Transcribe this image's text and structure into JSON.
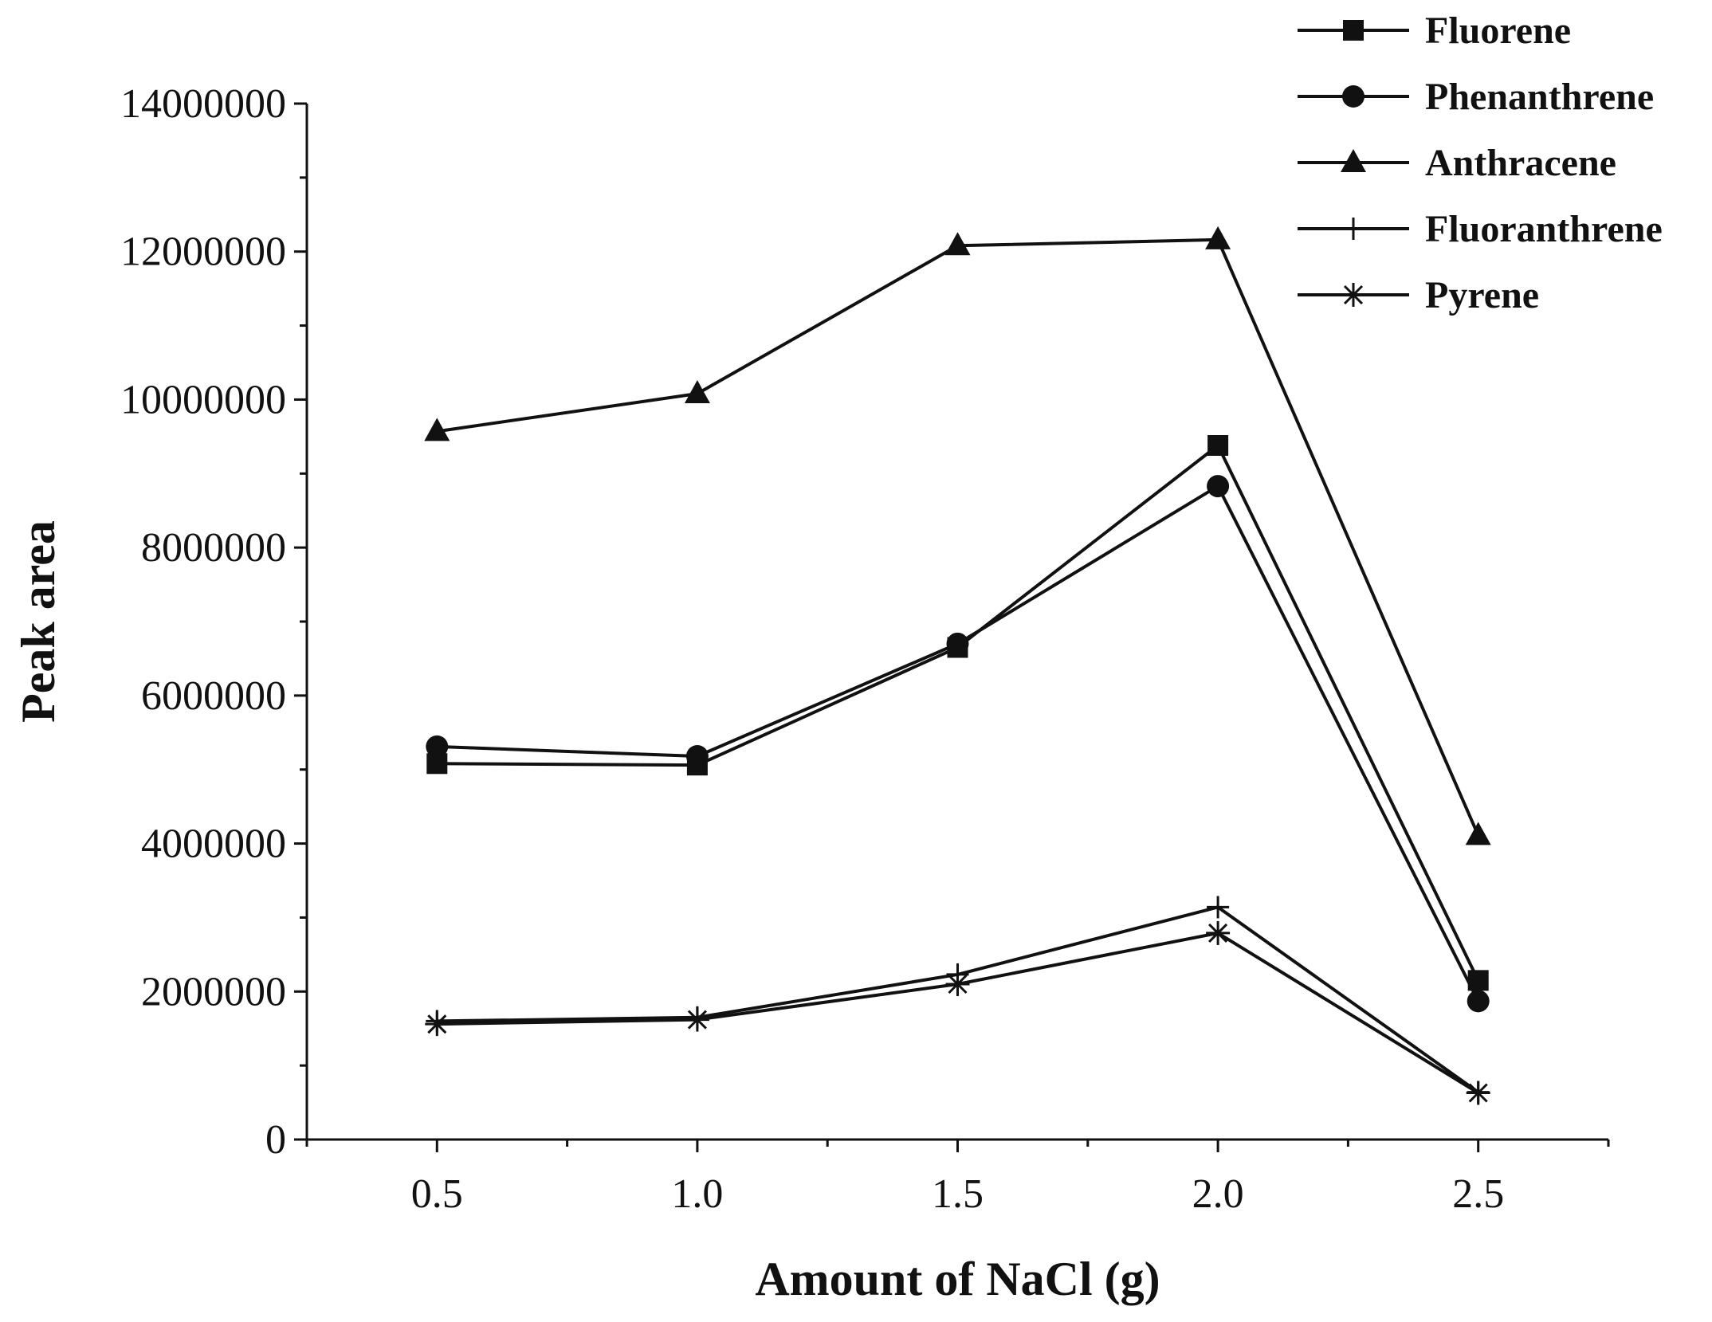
{
  "chart_data": {
    "type": "line",
    "title": "",
    "xlabel": "Amount of NaCl (g)",
    "ylabel": "Peak area",
    "x": [
      0.5,
      1.0,
      1.5,
      2.0,
      2.5
    ],
    "xlim": [
      0.25,
      2.75
    ],
    "ylim": [
      0,
      14000000
    ],
    "x_ticks": [
      0.5,
      1.0,
      1.5,
      2.0,
      2.5
    ],
    "x_tick_labels": [
      "0.5",
      "1.0",
      "1.5",
      "2.0",
      "2.5"
    ],
    "y_ticks": [
      0,
      2000000,
      4000000,
      6000000,
      8000000,
      10000000,
      12000000,
      14000000
    ],
    "y_tick_labels": [
      "0",
      "2000000",
      "4000000",
      "6000000",
      "8000000",
      "10000000",
      "12000000",
      "14000000"
    ],
    "grid": false,
    "legend_position": "top-right",
    "line_color": "#111111",
    "series": [
      {
        "name": "Fluorene",
        "marker": "square",
        "values": [
          5080000,
          5060000,
          6650000,
          9380000,
          2150000
        ]
      },
      {
        "name": "Phenanthrene",
        "marker": "circle",
        "values": [
          5310000,
          5180000,
          6700000,
          8830000,
          1870000
        ]
      },
      {
        "name": "Anthracene",
        "marker": "triangle",
        "values": [
          9570000,
          10080000,
          12080000,
          12160000,
          4110000
        ]
      },
      {
        "name": "Fluoranthrene",
        "marker": "plus",
        "values": [
          1600000,
          1650000,
          2230000,
          3140000,
          640000
        ]
      },
      {
        "name": "Pyrene",
        "marker": "asterisk",
        "values": [
          1560000,
          1620000,
          2100000,
          2790000,
          630000
        ]
      }
    ]
  }
}
